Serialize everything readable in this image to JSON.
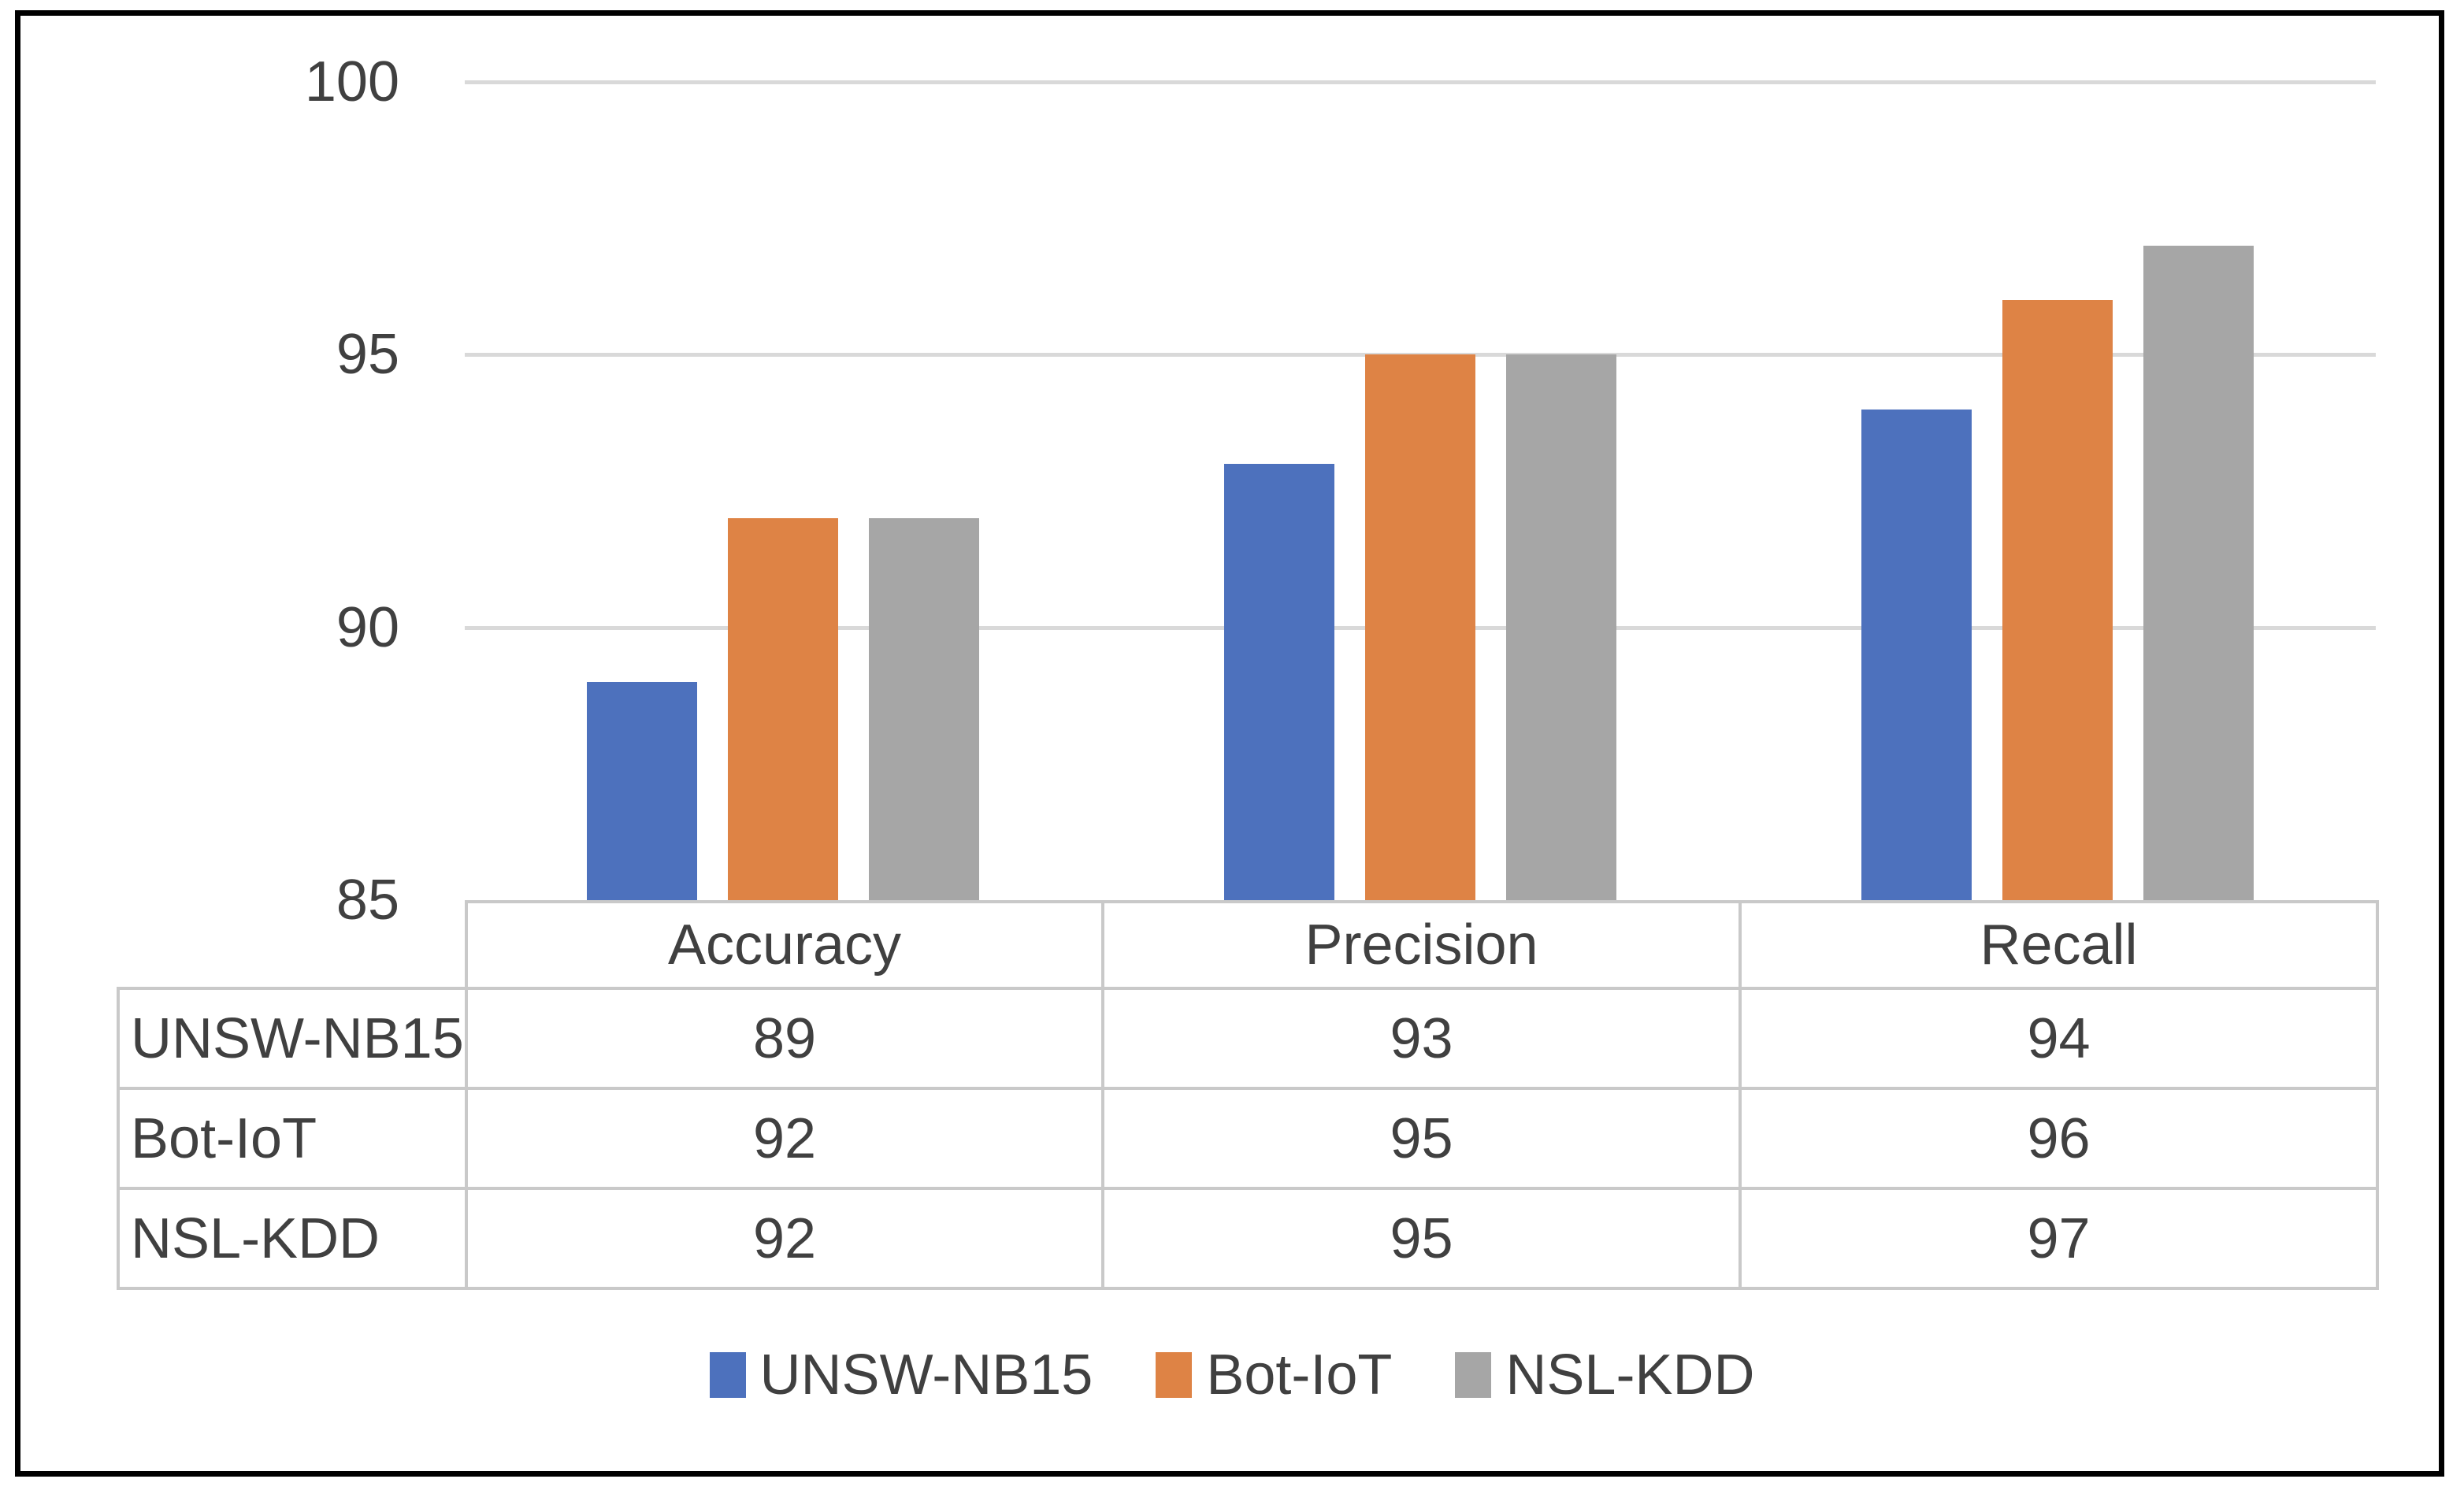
{
  "chart_data": {
    "type": "bar",
    "title": "",
    "xlabel": "",
    "ylabel": "",
    "categories": [
      "Accuracy",
      "Precision",
      "Recall"
    ],
    "series": [
      {
        "name": "UNSW-NB15",
        "color": "#4D71BD",
        "values": [
          89,
          93,
          94
        ]
      },
      {
        "name": "Bot-IoT",
        "color": "#DE8345",
        "values": [
          92,
          95,
          96
        ]
      },
      {
        "name": "NSL-KDD",
        "color": "#A6A6A6",
        "values": [
          92,
          95,
          97
        ]
      }
    ],
    "ylim": [
      85,
      100
    ],
    "yticks": [
      100,
      95,
      90,
      85
    ],
    "grid": true,
    "legend_position": "bottom",
    "data_table_shown": true
  },
  "colors": {
    "text": "#404040",
    "gridline": "#D9D9D9",
    "table_border": "#C9C9C9",
    "frame": "#000000",
    "background": "#FFFFFF"
  }
}
